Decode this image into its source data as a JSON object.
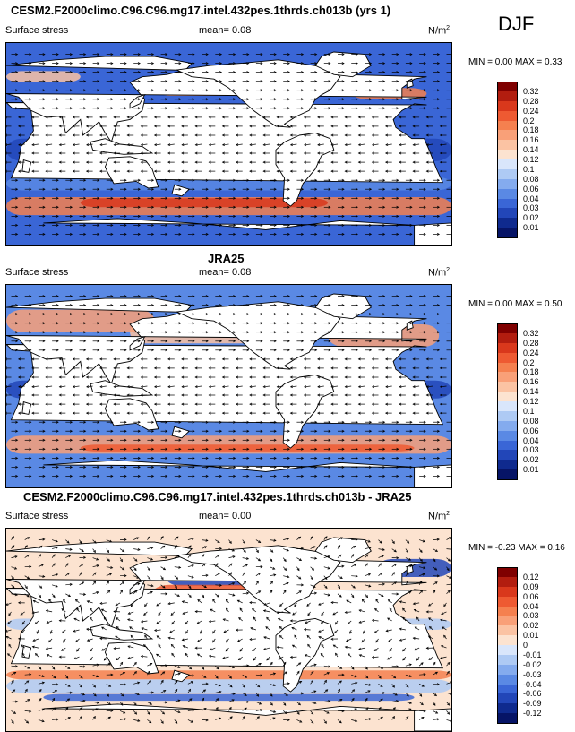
{
  "season": "DJF",
  "panels": [
    {
      "id": "model",
      "title": "CESM2.F2000climo.C96.C96.mg17.intel.432pes.1thrds.ch013b (yrs 1)",
      "left_label": "Surface stress",
      "mean_text": "mean=  0.08",
      "units_base": "N/m",
      "units_exp": "2",
      "minmax_text": "MIN =  0.00 MAX =  0.33",
      "levels": [
        "0.32",
        "0.28",
        "0.24",
        "0.2",
        "0.18",
        "0.16",
        "0.14",
        "0.12",
        "0.1",
        "0.08",
        "0.06",
        "0.04",
        "0.03",
        "0.02",
        "0.01"
      ]
    },
    {
      "id": "obs",
      "title": "JRA25",
      "left_label": "Surface stress",
      "mean_text": "mean=  0.08",
      "units_base": "N/m",
      "units_exp": "2",
      "minmax_text": "MIN =  0.00 MAX =  0.50",
      "levels": [
        "0.32",
        "0.28",
        "0.24",
        "0.2",
        "0.18",
        "0.16",
        "0.14",
        "0.12",
        "0.1",
        "0.08",
        "0.06",
        "0.04",
        "0.03",
        "0.02",
        "0.01"
      ]
    },
    {
      "id": "diff",
      "title": "CESM2.F2000climo.C96.C96.mg17.intel.432pes.1thrds.ch013b - JRA25",
      "left_label": "Surface stress",
      "mean_text": "mean=  0.00",
      "units_base": "N/m",
      "units_exp": "2",
      "minmax_text": "MIN = -0.23 MAX =  0.16",
      "levels": [
        "0.12",
        "0.09",
        "0.06",
        "0.04",
        "0.03",
        "0.02",
        "0.01",
        "0",
        "-0.01",
        "-0.02",
        "-0.03",
        "-0.04",
        "-0.06",
        "-0.09",
        "-0.12"
      ]
    }
  ],
  "colors": {
    "scale": [
      "#7f0000",
      "#b21d0f",
      "#d9381c",
      "#ee5a32",
      "#f5804f",
      "#f9a078",
      "#fbc3a3",
      "#fce3d0",
      "#d9e6fb",
      "#aecaf4",
      "#84abee",
      "#5a89e4",
      "#3a66d6",
      "#2246b8",
      "#0f2a8e",
      "#061466"
    ],
    "ocean_blue": "#3f6fd8",
    "land": "#ffffff"
  },
  "chart_data": [
    {
      "type": "heatmap",
      "title": "CESM2.F2000climo.C96.C96.mg17.intel.432pes.1thrds.ch013b (yrs 1)",
      "variable": "Surface stress",
      "units": "N/m^2",
      "season": "DJF",
      "mean": 0.08,
      "min": 0.0,
      "max": 0.33,
      "contour_levels": [
        0.01,
        0.02,
        0.03,
        0.04,
        0.06,
        0.08,
        0.1,
        0.12,
        0.14,
        0.16,
        0.18,
        0.2,
        0.24,
        0.28,
        0.32
      ]
    },
    {
      "type": "heatmap",
      "title": "JRA25",
      "variable": "Surface stress",
      "units": "N/m^2",
      "season": "DJF",
      "mean": 0.08,
      "min": 0.0,
      "max": 0.5,
      "contour_levels": [
        0.01,
        0.02,
        0.03,
        0.04,
        0.06,
        0.08,
        0.1,
        0.12,
        0.14,
        0.16,
        0.18,
        0.2,
        0.24,
        0.28,
        0.32
      ]
    },
    {
      "type": "heatmap",
      "title": "CESM2.F2000climo.C96.C96.mg17.intel.432pes.1thrds.ch013b - JRA25",
      "variable": "Surface stress",
      "units": "N/m^2",
      "season": "DJF",
      "mean": 0.0,
      "min": -0.23,
      "max": 0.16,
      "contour_levels": [
        -0.12,
        -0.09,
        -0.06,
        -0.04,
        -0.03,
        -0.02,
        -0.01,
        0,
        0.01,
        0.02,
        0.03,
        0.04,
        0.06,
        0.09,
        0.12
      ]
    }
  ]
}
